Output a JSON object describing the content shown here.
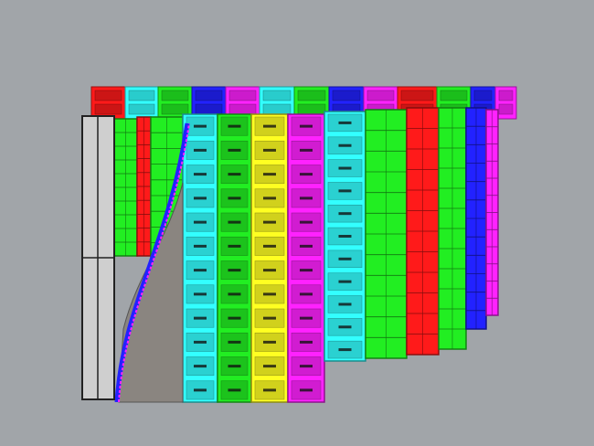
{
  "viewport": {
    "background": "#a1a5a9",
    "palette": {
      "red": "#ff1a1a",
      "cyan": "#33ffff",
      "green": "#22ee22",
      "blue": "#2222ff",
      "magenta": "#ff22ff",
      "yellow": "#ffff22",
      "hull_gray": "#8a8580",
      "frame_gray": "#c8c8c8"
    }
  }
}
